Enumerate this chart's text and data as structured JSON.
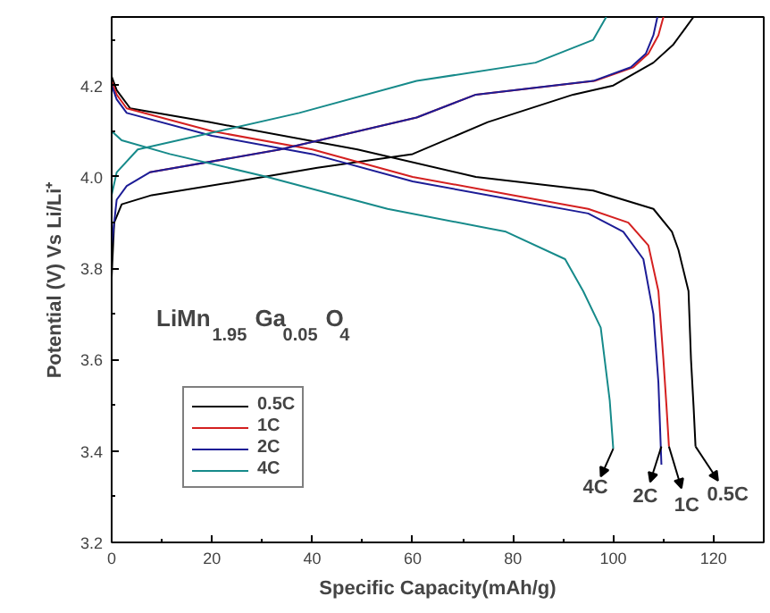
{
  "chart_data": {
    "type": "line",
    "xlabel": "Specific Capacity(mAh/g)",
    "ylabel": "Potential (V) Vs Li/Li⁺",
    "xlim": [
      0,
      130
    ],
    "xticks": [
      0,
      20,
      40,
      60,
      80,
      100,
      120
    ],
    "ylim": [
      3.2,
      4.35
    ],
    "yticks": [
      3.2,
      3.4,
      3.6,
      3.8,
      {
        "value": 4.0,
        "label": "4.0"
      },
      4.2
    ],
    "grid": false,
    "legend": "bottom left",
    "marker": "none",
    "line_style": "solid",
    "series": [
      {
        "name": "0.5C",
        "color": "#000000",
        "x": [
          0,
          0.5,
          2,
          8,
          25,
          41,
          60,
          75,
          92,
          100,
          108,
          112,
          114,
          116,
          null,
          0,
          1,
          3.7,
          19.4,
          49,
          72.6,
          96,
          108,
          111.7,
          113,
          115,
          115.5,
          116,
          116.4
        ],
        "values": [
          3.78,
          3.9,
          3.94,
          3.96,
          3.99,
          4.02,
          4.05,
          4.12,
          4.18,
          4.2,
          4.25,
          4.29,
          4.32,
          4.35,
          null,
          4.22,
          4.19,
          4.15,
          4.12,
          4.06,
          4.0,
          3.97,
          3.93,
          3.88,
          3.84,
          3.75,
          3.6,
          3.5,
          3.41
        ]
      },
      {
        "name": "1C",
        "color": "#d42020",
        "x": [
          7.6,
          33.6,
          60.8,
          72.6,
          96.3,
          104,
          107,
          109,
          110,
          null,
          0,
          1,
          3,
          20,
          40,
          60,
          80,
          95,
          103,
          107,
          109,
          110,
          110.6,
          111.1
        ],
        "values": [
          4.01,
          4.06,
          4.13,
          4.18,
          4.21,
          4.24,
          4.27,
          4.31,
          4.35,
          null,
          4.21,
          4.18,
          4.15,
          4.1,
          4.06,
          4.0,
          3.96,
          3.93,
          3.9,
          3.85,
          3.75,
          3.6,
          3.5,
          3.41
        ]
      },
      {
        "name": "2C",
        "color": "#1c1c96",
        "x": [
          0,
          1,
          3,
          7.6,
          33.6,
          60.8,
          72.6,
          96,
          103.5,
          106.5,
          108,
          108.8,
          null,
          0,
          1,
          3,
          20,
          40,
          60,
          80,
          95,
          102,
          106,
          108,
          109,
          109.6
        ],
        "values": [
          3.85,
          3.95,
          3.98,
          4.01,
          4.06,
          4.13,
          4.18,
          4.21,
          4.24,
          4.27,
          4.31,
          4.35,
          null,
          4.2,
          4.17,
          4.14,
          4.09,
          4.05,
          3.99,
          3.95,
          3.92,
          3.88,
          3.82,
          3.7,
          3.55,
          3.37
        ]
      },
      {
        "name": "4C",
        "color": "#168a8a",
        "x": [
          0,
          1,
          5.2,
          37.4,
          60.8,
          84.5,
          96,
          98.6,
          null,
          0,
          2,
          11.6,
          31,
          55,
          78.6,
          90.4,
          94,
          97.5,
          99.3,
          100
        ],
        "values": [
          3.96,
          4.01,
          4.06,
          4.14,
          4.21,
          4.25,
          4.3,
          4.35,
          null,
          4.1,
          4.08,
          4.05,
          4.0,
          3.93,
          3.88,
          3.82,
          3.75,
          3.67,
          3.51,
          3.405
        ]
      }
    ],
    "annotations": [
      "LiMn$_{1.95}$Ga$_{0.05}$O$_{4}$",
      {
        "text": "4C",
        "x": 100,
        "y": 3.405
      },
      {
        "text": "2C",
        "x": 109.6,
        "y": 3.41
      },
      {
        "text": "1C",
        "x": 111.1,
        "y": 3.41
      },
      {
        "text": "0.5C",
        "x": 116.4,
        "y": 3.41
      }
    ]
  }
}
